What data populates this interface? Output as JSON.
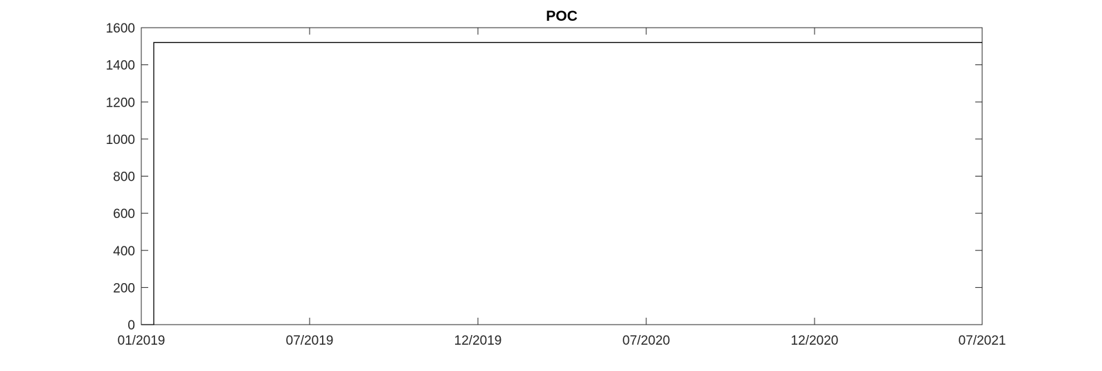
{
  "chart_data": {
    "type": "line",
    "title": "POC",
    "xlabel": "",
    "ylabel": "",
    "x_tick_labels": [
      "01/2019",
      "07/2019",
      "12/2019",
      "07/2020",
      "12/2020",
      "07/2021"
    ],
    "y_ticks": [
      0,
      200,
      400,
      600,
      800,
      1000,
      1200,
      1400,
      1600
    ],
    "ylim": [
      0,
      1600
    ],
    "grid": false,
    "series": [
      {
        "color": "#000000",
        "x": [
          "01/2019",
          "01/2019",
          "01/2019",
          "07/2021"
        ],
        "y": [
          0,
          0,
          1520,
          1520
        ]
      }
    ]
  }
}
